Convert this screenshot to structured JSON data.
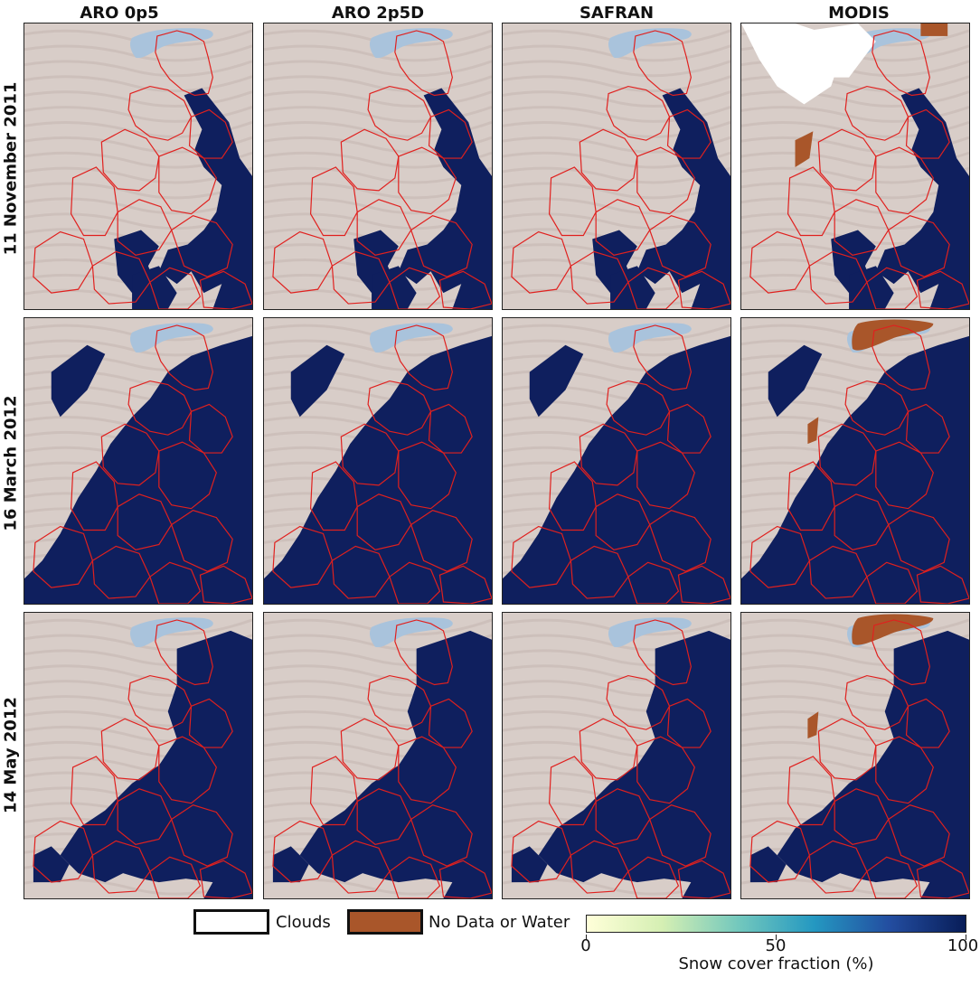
{
  "columns": [
    "ARO 0p5",
    "ARO 2p5D",
    "SAFRAN",
    "MODIS"
  ],
  "rows": [
    "11 November 2011",
    "16 March 2012",
    "14 May 2012"
  ],
  "legend": {
    "clouds": "Clouds",
    "nodata": "No Data or Water",
    "clouds_color": "#ffffff",
    "nodata_color": "#a9562a"
  },
  "colorbar": {
    "title": "Snow cover fraction (%)",
    "ticks": [
      "0",
      "50",
      "100"
    ],
    "colors": [
      "#ffffd9",
      "#73c8bd",
      "#2498c1",
      "#081d58"
    ]
  },
  "colors": {
    "snow": "#0f1f5e",
    "terrain": "#d8cdc8",
    "lake": "#a9c3dc",
    "massif_border": "#e0201e"
  }
}
